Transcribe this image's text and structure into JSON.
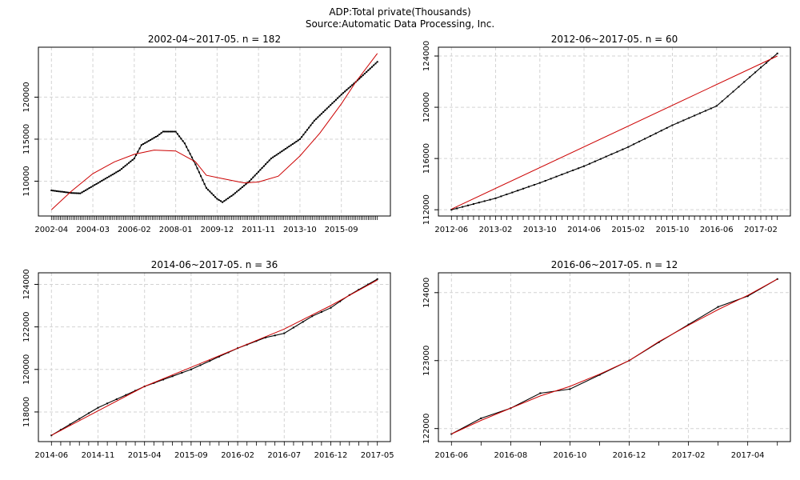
{
  "header": {
    "title": "ADP:Total private(Thousands)",
    "subtitle": "Source:Automatic Data Processing, Inc."
  },
  "colors": {
    "data": "#000000",
    "fit": "#cc0000",
    "grid": "#d3d3d3"
  },
  "chart_data": [
    {
      "type": "line",
      "title": "2002-04~2017-05. n = 182",
      "x_start": "2002-04",
      "x_end": "2017-05",
      "x_tick_labels": [
        "2002-04",
        "2004-03",
        "2006-02",
        "2008-01",
        "2009-12",
        "2011-11",
        "2013-10",
        "2015-09"
      ],
      "y_ticks": [
        110000,
        115000,
        120000
      ],
      "ylim": [
        106600,
        125200
      ],
      "grid": true,
      "series": [
        {
          "role": "data",
          "marker": "point",
          "points": [
            [
              "2002-04",
              108900
            ],
            [
              "2003-03",
              108600
            ],
            [
              "2003-08",
              108550
            ],
            [
              "2004-06",
              109800
            ],
            [
              "2005-06",
              111300
            ],
            [
              "2006-02",
              112700
            ],
            [
              "2006-06",
              114300
            ],
            [
              "2007-03",
              115400
            ],
            [
              "2007-06",
              115900
            ],
            [
              "2008-01",
              115900
            ],
            [
              "2008-06",
              114500
            ],
            [
              "2008-12",
              112000
            ],
            [
              "2009-06",
              109200
            ],
            [
              "2009-12",
              107900
            ],
            [
              "2010-03",
              107500
            ],
            [
              "2010-09",
              108400
            ],
            [
              "2011-06",
              110000
            ],
            [
              "2012-06",
              112700
            ],
            [
              "2013-10",
              115000
            ],
            [
              "2014-06",
              117200
            ],
            [
              "2015-09",
              120300
            ],
            [
              "2016-06",
              122000
            ],
            [
              "2017-05",
              124200
            ]
          ]
        },
        {
          "role": "fit",
          "marker": "none",
          "points": [
            [
              "2002-04",
              106600
            ],
            [
              "2003-03",
              108800
            ],
            [
              "2004-03",
              110900
            ],
            [
              "2005-03",
              112300
            ],
            [
              "2006-02",
              113200
            ],
            [
              "2007-01",
              113700
            ],
            [
              "2008-01",
              113600
            ],
            [
              "2008-12",
              112300
            ],
            [
              "2009-06",
              110700
            ],
            [
              "2010-03",
              110300
            ],
            [
              "2011-03",
              109800
            ],
            [
              "2011-11",
              109900
            ],
            [
              "2012-10",
              110600
            ],
            [
              "2013-10",
              113000
            ],
            [
              "2014-09",
              115700
            ],
            [
              "2015-09",
              119200
            ],
            [
              "2016-05",
              121800
            ],
            [
              "2017-05",
              125200
            ]
          ]
        }
      ]
    },
    {
      "type": "line",
      "title": "2012-06~2017-05. n = 60",
      "x_start": "2012-06",
      "x_end": "2017-05",
      "x_tick_labels": [
        "2012-06",
        "2013-02",
        "2013-10",
        "2014-06",
        "2015-02",
        "2015-10",
        "2016-06",
        "2017-02"
      ],
      "y_ticks": [
        112000,
        116000,
        120000,
        124000
      ],
      "ylim": [
        112000,
        124200
      ],
      "grid": true,
      "series": [
        {
          "role": "data",
          "marker": "point",
          "points": [
            [
              "2012-06",
              112000
            ],
            [
              "2013-02",
              112900
            ],
            [
              "2013-10",
              114100
            ],
            [
              "2014-06",
              115400
            ],
            [
              "2015-02",
              116900
            ],
            [
              "2015-10",
              118600
            ],
            [
              "2016-06",
              120100
            ],
            [
              "2017-02",
              123100
            ],
            [
              "2017-05",
              124200
            ]
          ]
        },
        {
          "role": "fit",
          "marker": "none",
          "points": [
            [
              "2012-06",
              112050
            ],
            [
              "2017-05",
              124000
            ]
          ]
        }
      ]
    },
    {
      "type": "line",
      "title": "2014-06~2017-05. n = 36",
      "x_start": "2014-06",
      "x_end": "2017-05",
      "x_tick_labels": [
        "2014-06",
        "2014-11",
        "2015-04",
        "2015-09",
        "2016-02",
        "2016-07",
        "2016-12",
        "2017-05"
      ],
      "y_ticks": [
        118000,
        120000,
        122000,
        124000
      ],
      "ylim": [
        116900,
        124250
      ],
      "grid": true,
      "series": [
        {
          "role": "data",
          "marker": "point",
          "points": [
            [
              "2014-06",
              116900
            ],
            [
              "2014-11",
              118200
            ],
            [
              "2015-04",
              119200
            ],
            [
              "2015-09",
              120000
            ],
            [
              "2016-02",
              121000
            ],
            [
              "2016-05",
              121500
            ],
            [
              "2016-07",
              121700
            ],
            [
              "2016-10",
              122500
            ],
            [
              "2016-12",
              122900
            ],
            [
              "2017-02",
              123500
            ],
            [
              "2017-05",
              124250
            ]
          ]
        },
        {
          "role": "fit",
          "marker": "none",
          "points": [
            [
              "2014-06",
              116900
            ],
            [
              "2015-04",
              119200
            ],
            [
              "2016-02",
              121000
            ],
            [
              "2016-07",
              121900
            ],
            [
              "2016-12",
              123000
            ],
            [
              "2017-05",
              124200
            ]
          ]
        }
      ]
    },
    {
      "type": "line",
      "title": "2016-06~2017-05. n = 12",
      "x_start": "2016-06",
      "x_end": "2017-05",
      "x_tick_labels": [
        "2016-06",
        "2016-08",
        "2016-10",
        "2016-12",
        "2017-02",
        "2017-04"
      ],
      "y_ticks": [
        122000,
        123000,
        124000
      ],
      "ylim": [
        121900,
        124200
      ],
      "grid": true,
      "series": [
        {
          "role": "data",
          "marker": "point",
          "points": [
            [
              "2016-06",
              121920
            ],
            [
              "2016-07",
              122150
            ],
            [
              "2016-08",
              122300
            ],
            [
              "2016-09",
              122520
            ],
            [
              "2016-10",
              122580
            ],
            [
              "2016-11",
              122790
            ],
            [
              "2016-12",
              123000
            ],
            [
              "2017-01",
              123270
            ],
            [
              "2017-02",
              123530
            ],
            [
              "2017-03",
              123790
            ],
            [
              "2017-04",
              123950
            ],
            [
              "2017-05",
              124200
            ]
          ]
        },
        {
          "role": "fit",
          "marker": "none",
          "points": [
            [
              "2016-06",
              121920
            ],
            [
              "2016-07",
              122120
            ],
            [
              "2016-08",
              122300
            ],
            [
              "2016-09",
              122480
            ],
            [
              "2016-10",
              122620
            ],
            [
              "2016-11",
              122800
            ],
            [
              "2016-12",
              123000
            ],
            [
              "2017-01",
              123280
            ],
            [
              "2017-02",
              123520
            ],
            [
              "2017-03",
              123750
            ],
            [
              "2017-04",
              123960
            ],
            [
              "2017-05",
              124200
            ]
          ]
        }
      ]
    }
  ]
}
